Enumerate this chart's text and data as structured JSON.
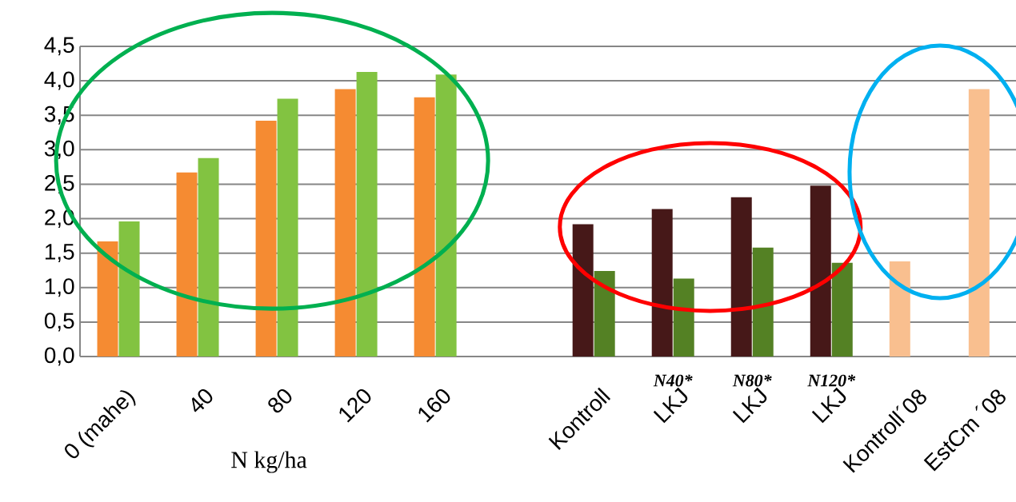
{
  "chart_data": {
    "type": "bar",
    "categories": [
      "0 (mahe)",
      "40",
      "80",
      "120",
      "160",
      null,
      "Kontroll",
      "LKJ",
      "LKJ",
      "LKJ",
      "Kontroll´08",
      "EstCm ´08"
    ],
    "series": [
      {
        "colors": [
          "#f58b32",
          "#f58b32",
          "#f58b32",
          "#f58b32",
          "#f58b32",
          null,
          "#461818",
          "#461818",
          "#461818",
          "#461818",
          "#f9bf8f",
          "#f9bf8f"
        ],
        "values": [
          1.67,
          2.67,
          3.42,
          3.88,
          3.76,
          null,
          1.92,
          2.14,
          2.31,
          2.48,
          1.38,
          3.88
        ]
      },
      {
        "colors": [
          "#82c341",
          "#82c341",
          "#82c341",
          "#82c341",
          "#82c341",
          null,
          "#548124",
          "#548124",
          "#548124",
          "#548124",
          null,
          null
        ],
        "values": [
          1.96,
          2.88,
          3.74,
          4.13,
          4.09,
          null,
          1.24,
          1.13,
          1.58,
          1.36,
          null,
          null
        ]
      }
    ],
    "ylim": [
      0,
      4.5
    ],
    "yticks": [
      {
        "value": 0,
        "label": "0,0"
      },
      {
        "value": 0.5,
        "label": "0,5"
      },
      {
        "value": 1,
        "label": "1,0"
      },
      {
        "value": 1.5,
        "label": "1,5"
      },
      {
        "value": 2,
        "label": "2,0"
      },
      {
        "value": 2.5,
        "label": "2,5"
      },
      {
        "value": 3,
        "label": "3,0"
      },
      {
        "value": 3.5,
        "label": "3,5"
      },
      {
        "value": 4,
        "label": "4,0"
      },
      {
        "value": 4.5,
        "label": "4,5"
      }
    ],
    "grid": "y",
    "annotations": [
      "N40*",
      "N80*",
      "N120*",
      "N kg/ha"
    ]
  }
}
